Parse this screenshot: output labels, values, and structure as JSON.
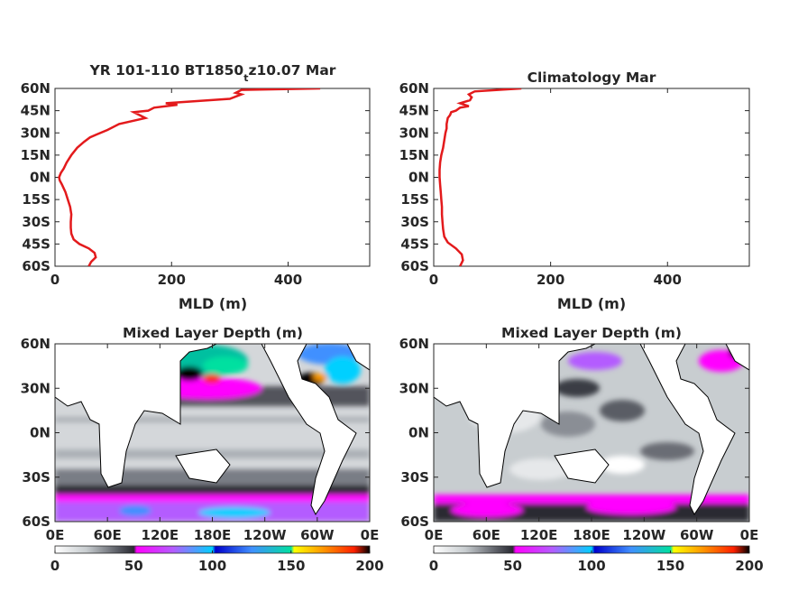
{
  "chart_data": [
    {
      "type": "line",
      "title": {
        "main": "YR 101-110 BT1850",
        "sub": "t",
        "tail": "z10.07 Mar"
      },
      "xlabel": "MLD (m)",
      "xlim": [
        0,
        540
      ],
      "ylim": [
        -60,
        60
      ],
      "xticks": [
        "0",
        "200",
        "400"
      ],
      "xtick_values": [
        0,
        200,
        400
      ],
      "yticks": [
        "60N",
        "45N",
        "30N",
        "15N",
        "0N",
        "15S",
        "30S",
        "45S",
        "60S"
      ],
      "ytick_values": [
        60,
        45,
        30,
        15,
        0,
        -15,
        -30,
        -45,
        -60
      ],
      "line_color": "#e31a1c",
      "series": [
        {
          "x": [
            58,
            62,
            70,
            68,
            58,
            42,
            32,
            28,
            27,
            27,
            28,
            26,
            22,
            18,
            12,
            8,
            7,
            10,
            15,
            20,
            28,
            38,
            50,
            60,
            72,
            90,
            110,
            155,
            135,
            160,
            170,
            210,
            190,
            300,
            320,
            310,
            320,
            455
          ],
          "y": [
            -60,
            -57,
            -54,
            -51,
            -48,
            -45,
            -42,
            -38,
            -34,
            -30,
            -25,
            -20,
            -15,
            -10,
            -5,
            -2,
            0,
            3,
            6,
            10,
            15,
            20,
            24,
            27,
            29,
            32,
            36,
            40,
            44,
            45,
            47,
            49,
            50,
            53,
            56,
            57,
            59,
            60
          ]
        }
      ]
    },
    {
      "type": "line",
      "title": "Climatology Mar",
      "xlabel": "MLD (m)",
      "xlim": [
        0,
        540
      ],
      "ylim": [
        -60,
        60
      ],
      "xticks": [
        "0",
        "200",
        "400"
      ],
      "xtick_values": [
        0,
        200,
        400
      ],
      "yticks": [
        "60N",
        "45N",
        "30N",
        "15N",
        "0N",
        "15S",
        "30S",
        "45S",
        "60S"
      ],
      "ytick_values": [
        60,
        45,
        30,
        15,
        0,
        -15,
        -30,
        -45,
        -60
      ],
      "line_color": "#e31a1c",
      "series": [
        {
          "x": [
            45,
            50,
            48,
            38,
            24,
            18,
            16,
            15,
            14,
            14,
            13,
            12,
            11,
            10,
            10,
            11,
            13,
            16,
            18,
            20,
            22,
            22,
            24,
            28,
            30,
            38,
            45,
            60,
            45,
            62,
            65,
            60,
            70,
            150
          ],
          "y": [
            -60,
            -56,
            -52,
            -48,
            -44,
            -40,
            -35,
            -30,
            -25,
            -20,
            -15,
            -10,
            -5,
            0,
            5,
            10,
            15,
            20,
            25,
            30,
            33,
            36,
            40,
            42,
            44,
            45,
            47,
            48,
            50,
            52,
            54,
            56,
            58,
            60
          ]
        }
      ]
    },
    {
      "type": "heatmap",
      "title": "Mixed Layer Depth (m)",
      "xticks": [
        "0E",
        "60E",
        "120E",
        "180E",
        "120W",
        "60W",
        "0E"
      ],
      "yticks": [
        "60N",
        "30N",
        "0N",
        "30S",
        "60S"
      ],
      "lon_range": [
        0,
        360
      ],
      "lat_range": [
        -60,
        60
      ],
      "colorbar": {
        "ticks": [
          "0",
          "50",
          "100",
          "150",
          "200"
        ],
        "range": [
          0,
          200
        ]
      }
    },
    {
      "type": "heatmap",
      "title": "Mixed Layer Depth (m)",
      "xticks": [
        "0E",
        "60E",
        "120E",
        "180E",
        "120W",
        "60W",
        "0E"
      ],
      "yticks": [
        "60N",
        "30N",
        "0N",
        "30S",
        "60S"
      ],
      "lon_range": [
        0,
        360
      ],
      "lat_range": [
        -60,
        60
      ],
      "colorbar": {
        "ticks": [
          "0",
          "50",
          "100",
          "150",
          "200"
        ],
        "range": [
          0,
          200
        ]
      }
    }
  ],
  "colormap": [
    {
      "v": 0,
      "c": "#ffffff"
    },
    {
      "v": 20,
      "c": "#c8cdd0"
    },
    {
      "v": 40,
      "c": "#5a5d65"
    },
    {
      "v": 50,
      "c": "#2a2a33"
    },
    {
      "v": 52,
      "c": "#ff00ff"
    },
    {
      "v": 75,
      "c": "#b45cff"
    },
    {
      "v": 100,
      "c": "#00d0ff"
    },
    {
      "v": 102,
      "c": "#0000cc"
    },
    {
      "v": 125,
      "c": "#4090ff"
    },
    {
      "v": 150,
      "c": "#00e0a0"
    },
    {
      "v": 152,
      "c": "#ffff00"
    },
    {
      "v": 170,
      "c": "#ff9900"
    },
    {
      "v": 190,
      "c": "#ff2000"
    },
    {
      "v": 200,
      "c": "#000000"
    }
  ]
}
